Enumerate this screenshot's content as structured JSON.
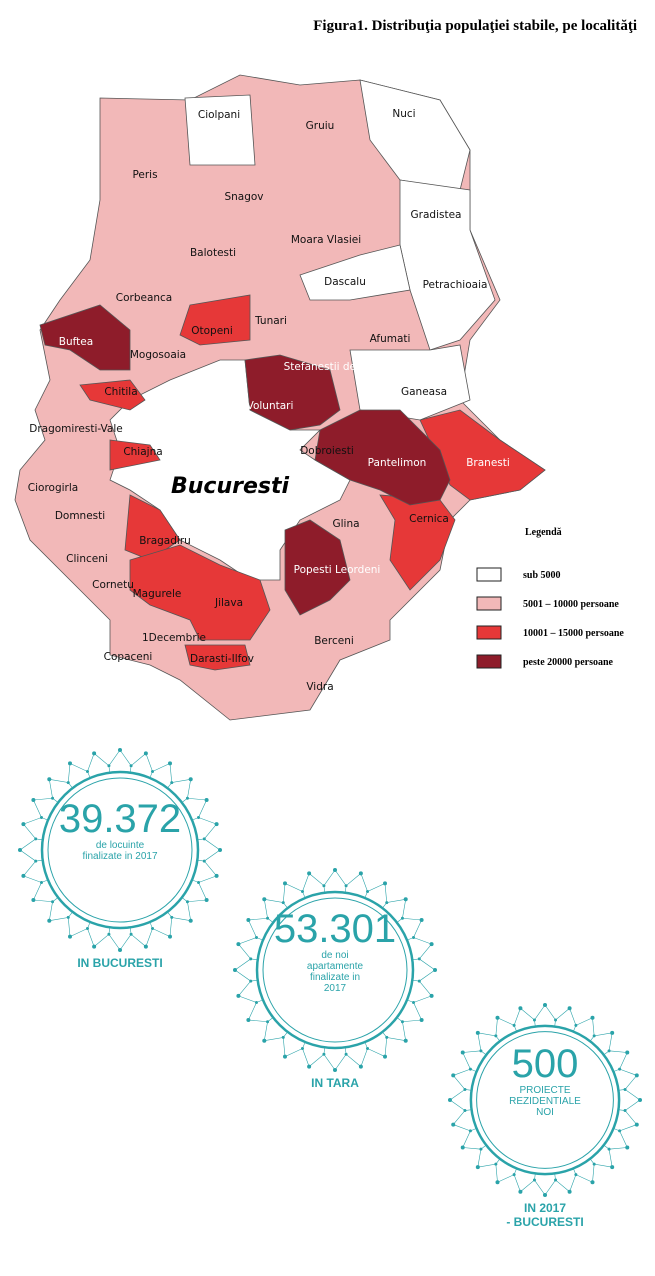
{
  "figure": {
    "title": "Figura1. Distribuţia populaţiei stabile, pe localităţi"
  },
  "map": {
    "center_label": "Bucuresti",
    "localities": [
      "Ciolpani",
      "Gruiu",
      "Nuci",
      "Peris",
      "Snagov",
      "Gradistea",
      "Balotesti",
      "Moara Vlasiei",
      "Dascalu",
      "Petrachioaia",
      "Corbeanca",
      "Tunari",
      "Otopeni",
      "Afumati",
      "Buftea",
      "Mogosoaia",
      "Stefanestii de Jos",
      "Ganeasa",
      "Chitila",
      "Voluntari",
      "Dragomiresti-Vale",
      "Dobroiesti",
      "Pantelimon",
      "Branesti",
      "Chiajna",
      "Ciorogirla",
      "Domnesti",
      "Glina",
      "Cernica",
      "Bragadiru",
      "Clinceni",
      "Popesti Leordeni",
      "Cornetu",
      "Magurele",
      "Jilava",
      "1Decembrie",
      "Berceni",
      "Copaceni",
      "Darasti-Ilfov",
      "Vidra"
    ]
  },
  "legend": {
    "title": "Legendă",
    "items": [
      {
        "label": "sub 5000",
        "color": "#ffffff"
      },
      {
        "label": "5001 – 10000 persoane",
        "color": "#f2b8b8"
      },
      {
        "label": "10001 – 15000 persoane",
        "color": "#e63838"
      },
      {
        "label": "peste 20000 persoane",
        "color": "#8e1c2a"
      }
    ]
  },
  "stats": [
    {
      "value": "39.372",
      "caption": [
        "de locuinte",
        "finalizate in 2017"
      ],
      "label": [
        "IN BUCURESTI"
      ]
    },
    {
      "value": "53.301",
      "caption": [
        "de noi",
        "apartamente",
        "finalizate in",
        "2017"
      ],
      "label": [
        "IN TARA"
      ]
    },
    {
      "value": "500",
      "caption": [
        "PROIECTE",
        "REZIDENTIALE",
        "NOI"
      ],
      "label": [
        "IN 2017",
        "- BUCURESTI"
      ]
    }
  ]
}
